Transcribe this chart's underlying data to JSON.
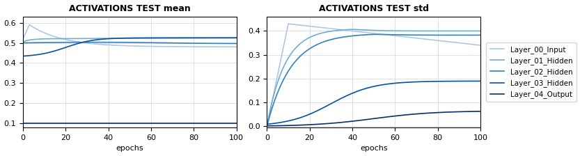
{
  "title_mean": "ACTIVATIONS TEST mean",
  "title_std": "ACTIVATIONS TEST std",
  "xlabel": "epochs",
  "layers": [
    "Layer_00_Input",
    "Layer_01_Hidden",
    "Layer_02_Hidden",
    "Layer_03_Hidden",
    "Layer_04_Output"
  ],
  "colors": [
    "#aec7e8",
    "#6baed6",
    "#3182bd",
    "#08519c",
    "#08306b"
  ],
  "n_epochs": 100,
  "figsize": [
    8.33,
    2.24
  ],
  "dpi": 100
}
